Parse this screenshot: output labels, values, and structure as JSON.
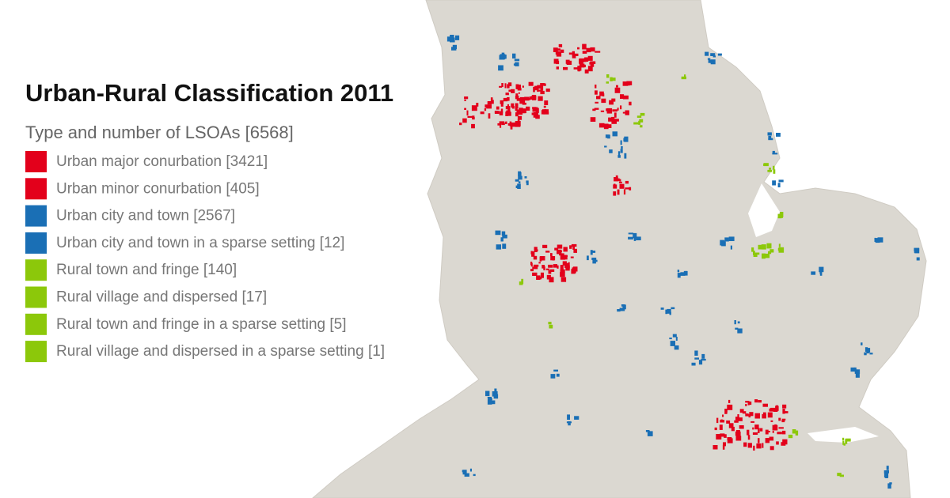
{
  "title": "Urban-Rural Classification 2011",
  "subtitle": "Type and number of LSOAs [6568]",
  "legend": [
    {
      "label": "Urban major conurbation [3421]",
      "color": "#e3001b"
    },
    {
      "label": "Urban minor conurbation [405]",
      "color": "#e3001b"
    },
    {
      "label": "Urban city and town [2567]",
      "color": "#1a6fb5"
    },
    {
      "label": "Urban city and town in a sparse setting [12]",
      "color": "#1a6fb5"
    },
    {
      "label": "Rural town and fringe [140]",
      "color": "#8cc80a"
    },
    {
      "label": "Rural village and dispersed [17]",
      "color": "#8cc80a"
    },
    {
      "label": "Rural town and fringe in a sparse setting [5]",
      "color": "#8cc80a"
    },
    {
      "label": "Rural village and dispersed in a sparse setting [1]",
      "color": "#8cc80a"
    }
  ]
}
